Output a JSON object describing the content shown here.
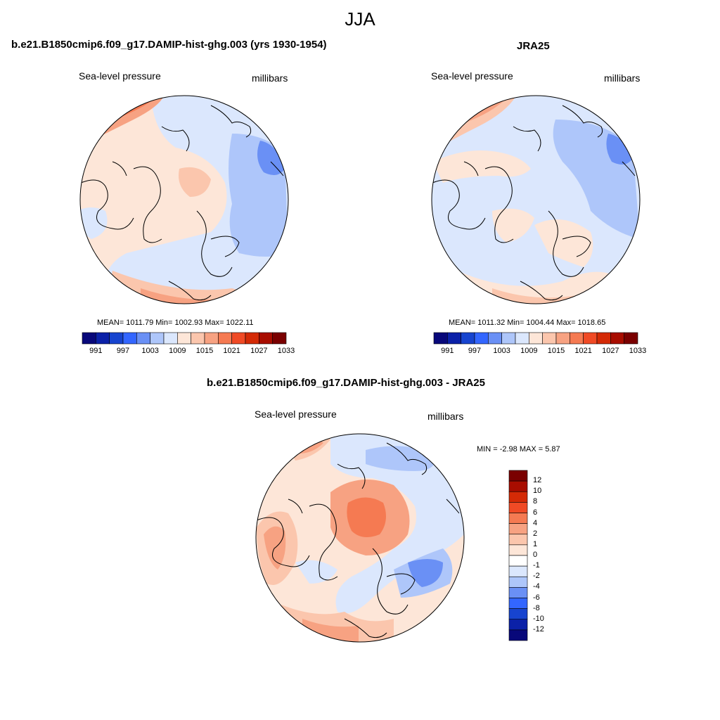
{
  "figure": {
    "title": "JJA"
  },
  "palette_full": [
    "#08087a",
    "#0b21a8",
    "#1744cf",
    "#3366ff",
    "#6a90f5",
    "#aec6fa",
    "#dbe7fd",
    "#fde6d8",
    "#fbc6ad",
    "#f7a282",
    "#f57a52",
    "#f04a25",
    "#d42a06",
    "#a80d00",
    "#7a0000"
  ],
  "panels": [
    {
      "id": "model",
      "title": "b.e21.B1850cmip6.f09_g17.DAMIP-hist-ghg.003 (yrs 1930-1954)",
      "variable": "Sea-level pressure",
      "units": "millibars",
      "stats": "MEAN= 1011.79  Min= 1002.93  Max= 1022.11",
      "colorbar_ticks": [
        "991",
        "997",
        "1003",
        "1009",
        "1015",
        "1021",
        "1027",
        "1033"
      ]
    },
    {
      "id": "obs",
      "title": "JRA25",
      "variable": "Sea-level pressure",
      "units": "millibars",
      "stats": "MEAN= 1011.32  Min= 1004.44  Max= 1018.65",
      "colorbar_ticks": [
        "991",
        "997",
        "1003",
        "1009",
        "1015",
        "1021",
        "1027",
        "1033"
      ]
    },
    {
      "id": "diff",
      "title": "b.e21.B1850cmip6.f09_g17.DAMIP-hist-ghg.003 - JRA25",
      "variable": "Sea-level pressure",
      "units": "millibars",
      "stats": "MIN =  -2.98 MAX =   5.87",
      "colorbar_ticks": [
        "12",
        "10",
        "8",
        "6",
        "4",
        "2",
        "1",
        "0",
        "-1",
        "-2",
        "-4",
        "-6",
        "-8",
        "-10",
        "-12"
      ],
      "colorbar_colors": [
        "#7a0000",
        "#a80d00",
        "#d42a06",
        "#f04a25",
        "#f57a52",
        "#f7a282",
        "#fbc6ad",
        "#fde6d8",
        "#ffffff",
        "#dbe7fd",
        "#aec6fa",
        "#6a90f5",
        "#3366ff",
        "#1744cf",
        "#0b21a8",
        "#08087a"
      ]
    }
  ]
}
